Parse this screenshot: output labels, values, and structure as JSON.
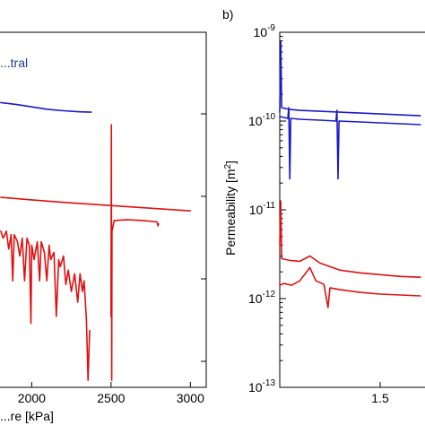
{
  "chart_data": [
    {
      "panel": "a",
      "panel_label_visible": false,
      "type": "line",
      "xlabel": "...re [kPa]",
      "ylabel": "",
      "xlim": [
        1800,
        3100
      ],
      "xticks": [
        "2000",
        "2500",
        "3000"
      ],
      "legend_fragment": "...tral",
      "legend_color": "#1f3c8c",
      "series": [
        {
          "color": "#1a1ac8",
          "points": [
            [
              1805,
              0.802
            ],
            [
              1900,
              0.797
            ],
            [
              2000,
              0.79
            ],
            [
              2100,
              0.783
            ],
            [
              2200,
              0.779
            ],
            [
              2300,
              0.776
            ],
            [
              2375,
              0.775
            ]
          ]
        },
        {
          "color": "#e01010",
          "points": [
            [
              1805,
              0.535
            ],
            [
              2000,
              0.528
            ],
            [
              2200,
              0.521
            ],
            [
              2400,
              0.515
            ],
            [
              2600,
              0.509
            ],
            [
              2800,
              0.503
            ],
            [
              3000,
              0.497
            ]
          ]
        },
        {
          "color": "#e01010",
          "points": [
            [
              1805,
              0.44
            ],
            [
              1820,
              0.42
            ],
            [
              1840,
              0.44
            ],
            [
              1855,
              0.39
            ],
            [
              1870,
              0.43
            ],
            [
              1880,
              0.3
            ],
            [
              1890,
              0.43
            ],
            [
              1910,
              0.41
            ],
            [
              1925,
              0.37
            ],
            [
              1940,
              0.42
            ],
            [
              1955,
              0.3
            ],
            [
              1970,
              0.42
            ],
            [
              1985,
              0.4
            ],
            [
              1995,
              0.18
            ],
            [
              2000,
              0.4
            ],
            [
              2015,
              0.36
            ],
            [
              2035,
              0.41
            ],
            [
              2050,
              0.3
            ],
            [
              2060,
              0.41
            ],
            [
              2080,
              0.38
            ],
            [
              2095,
              0.3
            ],
            [
              2110,
              0.4
            ],
            [
              2120,
              0.36
            ],
            [
              2140,
              0.38
            ],
            [
              2155,
              0.2
            ],
            [
              2170,
              0.36
            ],
            [
              2180,
              0.34
            ],
            [
              2200,
              0.37
            ],
            [
              2215,
              0.29
            ],
            [
              2230,
              0.33
            ],
            [
              2250,
              0.27
            ],
            [
              2270,
              0.32
            ],
            [
              2290,
              0.24
            ],
            [
              2305,
              0.32
            ],
            [
              2320,
              0.27
            ],
            [
              2330,
              0.3
            ],
            [
              2345,
              0.19
            ],
            [
              2355,
              0.02
            ],
            [
              2365,
              0.16
            ]
          ]
        },
        {
          "color": "#e01010",
          "points": [
            [
              2500,
              0.2
            ],
            [
              2502,
              0.74
            ],
            [
              2504,
              0.02
            ],
            [
              2506,
              0.44
            ],
            [
              2520,
              0.47
            ],
            [
              2600,
              0.472
            ],
            [
              2700,
              0.47
            ],
            [
              2790,
              0.466
            ],
            [
              2795,
              0.455
            ],
            [
              2800,
              0.46
            ]
          ]
        }
      ]
    },
    {
      "panel": "b",
      "panel_label": "b)",
      "type": "line",
      "log_y": true,
      "ylabel": "Permeability [m²]",
      "ylim": [
        "10^-13",
        "10^-9"
      ],
      "y_tick_labels": [
        {
          "base": "10",
          "exp": "-9"
        },
        {
          "base": "10",
          "exp": "-10"
        },
        {
          "base": "10",
          "exp": "-11"
        },
        {
          "base": "10",
          "exp": "-12"
        },
        {
          "base": "10",
          "exp": "-13"
        }
      ],
      "xticks": [
        "1.5"
      ],
      "xlim": [
        1.0,
        1.75
      ],
      "series": [
        {
          "color": "#1a1ac8",
          "points": [
            [
              1.0,
              -9.9
            ],
            [
              1.005,
              -9.1
            ],
            [
              1.01,
              -9.85
            ],
            [
              1.05,
              -9.87
            ],
            [
              1.1,
              -9.88
            ],
            [
              1.2,
              -9.89
            ],
            [
              1.3,
              -9.9
            ],
            [
              1.4,
              -9.91
            ],
            [
              1.5,
              -9.92
            ],
            [
              1.6,
              -9.93
            ],
            [
              1.7,
              -9.94
            ]
          ]
        },
        {
          "color": "#1a1ac8",
          "points": [
            [
              1.0,
              -9.95
            ],
            [
              1.04,
              -9.97
            ],
            [
              1.045,
              -9.85
            ],
            [
              1.05,
              -10.65
            ],
            [
              1.055,
              -9.97
            ],
            [
              1.1,
              -9.98
            ],
            [
              1.2,
              -9.99
            ],
            [
              1.28,
              -10.0
            ],
            [
              1.285,
              -9.88
            ],
            [
              1.29,
              -10.65
            ],
            [
              1.295,
              -10.0
            ],
            [
              1.4,
              -10.01
            ],
            [
              1.5,
              -10.02
            ],
            [
              1.6,
              -10.03
            ],
            [
              1.7,
              -10.04
            ]
          ]
        },
        {
          "color": "#e01010",
          "points": [
            [
              1.0,
              -11.4
            ],
            [
              1.005,
              -10.9
            ],
            [
              1.01,
              -11.55
            ],
            [
              1.05,
              -11.57
            ],
            [
              1.1,
              -11.58
            ],
            [
              1.15,
              -11.52
            ],
            [
              1.2,
              -11.6
            ],
            [
              1.25,
              -11.64
            ],
            [
              1.3,
              -11.68
            ],
            [
              1.4,
              -11.71
            ],
            [
              1.5,
              -11.73
            ],
            [
              1.6,
              -11.75
            ],
            [
              1.7,
              -11.76
            ]
          ]
        },
        {
          "color": "#e01010",
          "points": [
            [
              1.0,
              -11.85
            ],
            [
              1.02,
              -11.83
            ],
            [
              1.06,
              -11.85
            ],
            [
              1.1,
              -11.8
            ],
            [
              1.15,
              -11.65
            ],
            [
              1.18,
              -11.8
            ],
            [
              1.22,
              -11.84
            ],
            [
              1.24,
              -12.1
            ],
            [
              1.25,
              -11.88
            ],
            [
              1.3,
              -11.9
            ],
            [
              1.4,
              -11.93
            ],
            [
              1.5,
              -11.95
            ],
            [
              1.6,
              -11.96
            ],
            [
              1.7,
              -11.97
            ]
          ]
        }
      ]
    }
  ]
}
